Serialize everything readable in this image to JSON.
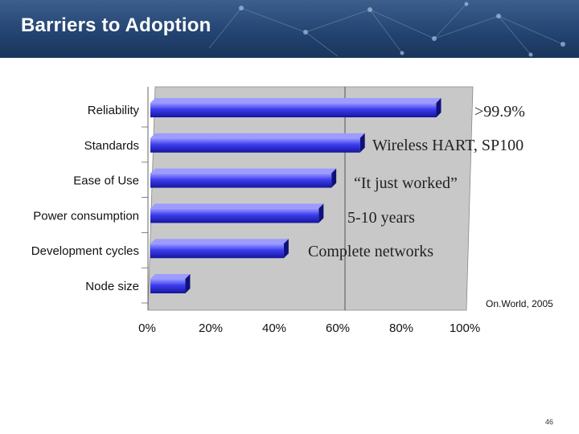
{
  "slide": {
    "title": "Barriers to Adoption",
    "source": "On.World, 2005",
    "page_number": "46"
  },
  "chart_data": {
    "type": "bar",
    "orientation": "horizontal",
    "categories": [
      "Reliability",
      "Standards",
      "Ease of Use",
      "Power consumption",
      "Development cycles",
      "Node size"
    ],
    "values": [
      0.9,
      0.66,
      0.57,
      0.53,
      0.42,
      0.11
    ],
    "xlim": [
      0,
      1
    ],
    "x_ticks": [
      "0%",
      "20%",
      "40%",
      "60%",
      "80%",
      "100%"
    ],
    "annotations": [
      ">99.9%",
      "Wireless HART, SP100",
      "“It just worked”",
      "5-10 years",
      "Complete networks",
      ""
    ],
    "colors": {
      "bar": "#2a2ae8",
      "bar_light": "#9c9cff",
      "plot_bg": "#c8c8c8"
    }
  }
}
